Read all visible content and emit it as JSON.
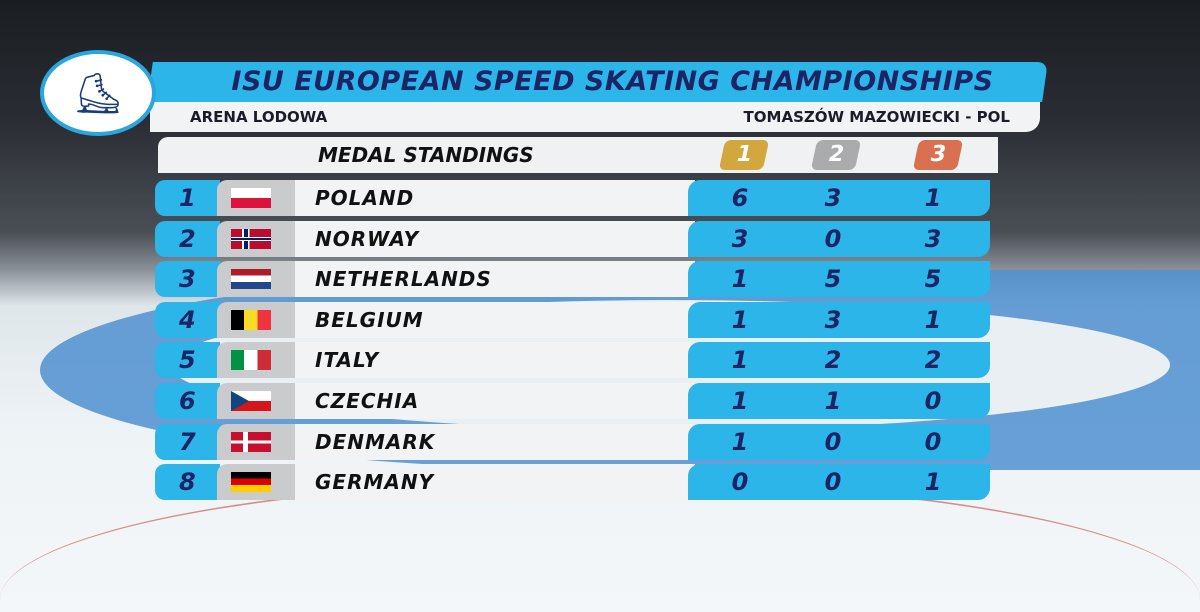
{
  "header": {
    "title": "ISU EUROPEAN SPEED SKATING CHAMPIONSHIPS",
    "venue": "ARENA LODOWA",
    "location": "TOMASZÓW MAZOWIECKI - POL",
    "table_title": "MEDAL STANDINGS",
    "medals": [
      {
        "label": "1",
        "color": "#d2a73e"
      },
      {
        "label": "2",
        "color": "#a9abad"
      },
      {
        "label": "3",
        "color": "#d9704f"
      }
    ]
  },
  "colors": {
    "accent": "#2cb5e8",
    "text_navy": "#1c2466"
  },
  "standings": [
    {
      "rank": "1",
      "country": "POLAND",
      "flag": "poland-flag",
      "gold": "6",
      "silver": "3",
      "bronze": "1"
    },
    {
      "rank": "2",
      "country": "NORWAY",
      "flag": "norway-flag",
      "gold": "3",
      "silver": "0",
      "bronze": "3"
    },
    {
      "rank": "3",
      "country": "NETHERLANDS",
      "flag": "netherlands-flag",
      "gold": "1",
      "silver": "5",
      "bronze": "5"
    },
    {
      "rank": "4",
      "country": "BELGIUM",
      "flag": "belgium-flag",
      "gold": "1",
      "silver": "3",
      "bronze": "1"
    },
    {
      "rank": "5",
      "country": "ITALY",
      "flag": "italy-flag",
      "gold": "1",
      "silver": "2",
      "bronze": "2"
    },
    {
      "rank": "6",
      "country": "CZECHIA",
      "flag": "czechia-flag",
      "gold": "1",
      "silver": "1",
      "bronze": "0"
    },
    {
      "rank": "7",
      "country": "DENMARK",
      "flag": "denmark-flag",
      "gold": "1",
      "silver": "0",
      "bronze": "0"
    },
    {
      "rank": "8",
      "country": "GERMANY",
      "flag": "germany-flag",
      "gold": "0",
      "silver": "0",
      "bronze": "1"
    }
  ]
}
